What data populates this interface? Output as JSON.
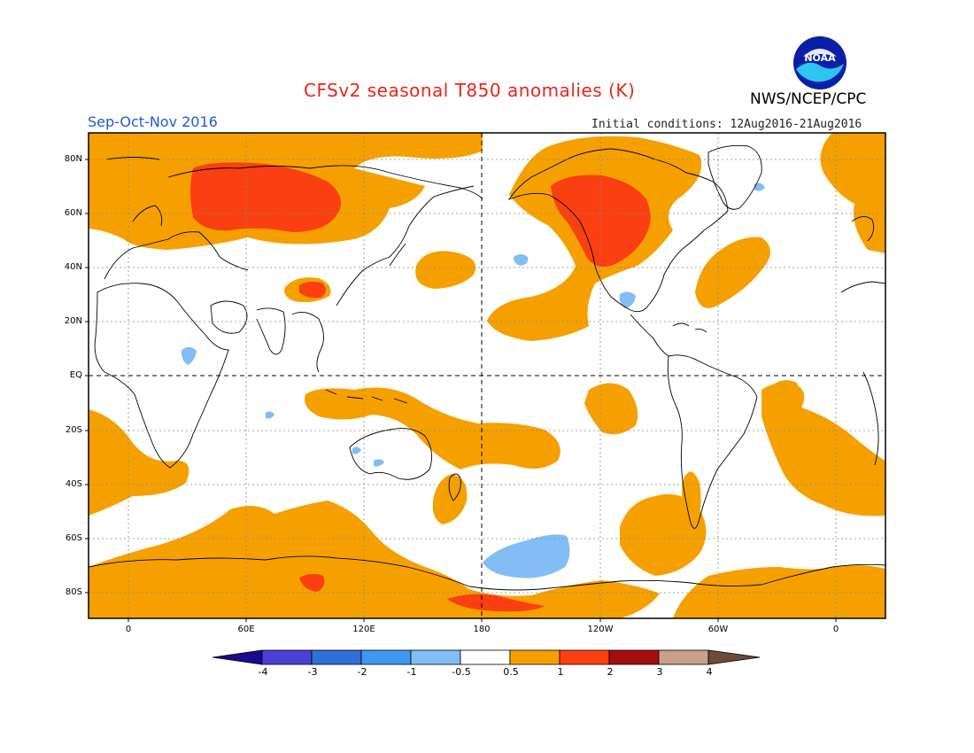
{
  "header": {
    "title": "CFSv2 seasonal T850 anomalies (K)",
    "agency": "NWS/NCEP/CPC",
    "season": "Sep-Oct-Nov 2016",
    "initial_conditions": "Initial conditions: 12Aug2016-21Aug2016",
    "logo_text": "NOAA"
  },
  "map": {
    "latitude_labels": [
      "80N",
      "60N",
      "40N",
      "20N",
      "EQ",
      "20S",
      "40S",
      "60S",
      "80S"
    ],
    "longitude_labels": [
      "0",
      "60E",
      "120E",
      "180",
      "120W",
      "60W",
      "0"
    ],
    "grid_lines": true
  },
  "colorbar": {
    "labels": [
      "-4",
      "-3",
      "-2",
      "-1",
      "-0.5",
      "0.5",
      "1",
      "2",
      "3",
      "4"
    ],
    "colors": [
      "#1a0a8c",
      "#4b40d6",
      "#2f6fd6",
      "#3f98f0",
      "#82bdf5",
      "#ffffff",
      "#f6a000",
      "#fa4010",
      "#a50e0e",
      "#c8a08c",
      "#6e4a3c"
    ]
  },
  "colors": {
    "anomaly_0_5_to_1": "#f6a000",
    "anomaly_1_to_2": "#fa4010",
    "anomaly_2_to_3": "#a50e0e",
    "anomaly_neg_0_5_to_neg_1": "#82bdf5",
    "coastline": "#000000",
    "title": "#e8261a",
    "season": "#1f5ad8"
  }
}
